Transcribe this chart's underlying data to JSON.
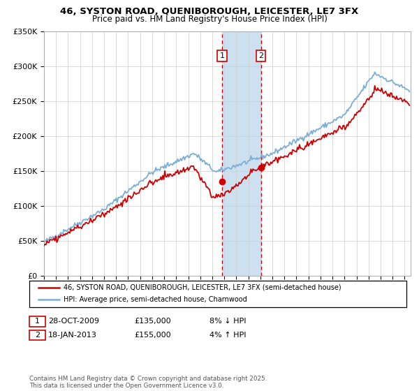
{
  "title_line1": "46, SYSTON ROAD, QUENIBOROUGH, LEICESTER, LE7 3FX",
  "title_line2": "Price paid vs. HM Land Registry's House Price Index (HPI)",
  "ylim": [
    0,
    350000
  ],
  "yticks": [
    0,
    50000,
    100000,
    150000,
    200000,
    250000,
    300000,
    350000
  ],
  "ytick_labels": [
    "£0",
    "£50K",
    "£100K",
    "£150K",
    "£200K",
    "£250K",
    "£300K",
    "£350K"
  ],
  "xlim_start": 1995.0,
  "xlim_end": 2025.5,
  "transactions": [
    {
      "date": "28-OCT-2009",
      "price": 135000,
      "label": "1",
      "year": 2009.82,
      "hpi_pct": "8% ↓ HPI"
    },
    {
      "date": "18-JAN-2013",
      "price": 155000,
      "label": "2",
      "year": 2013.05,
      "hpi_pct": "4% ↑ HPI"
    }
  ],
  "legend_line1": "46, SYSTON ROAD, QUENIBOROUGH, LEICESTER, LE7 3FX (semi-detached house)",
  "legend_line2": "HPI: Average price, semi-detached house, Charnwood",
  "footer": "Contains HM Land Registry data © Crown copyright and database right 2025.\nThis data is licensed under the Open Government Licence v3.0.",
  "property_color": "#cc0000",
  "hpi_color": "#7aaed6",
  "shade_color": "#cce0f0",
  "dashed_color": "#cc0000"
}
